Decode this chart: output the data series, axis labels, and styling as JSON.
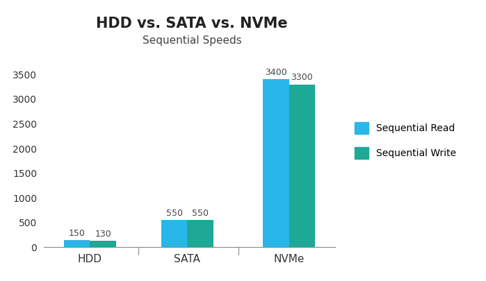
{
  "title": "HDD vs. SATA vs. NVMe",
  "subtitle": "Sequential Speeds",
  "categories": [
    "HDD",
    "SATA",
    "NVMe"
  ],
  "read_values": [
    150,
    550,
    3400
  ],
  "write_values": [
    130,
    550,
    3300
  ],
  "read_color": "#29B6E8",
  "write_color": "#1EA896",
  "ylim": [
    0,
    3700
  ],
  "yticks": [
    0,
    500,
    1000,
    1500,
    2000,
    2500,
    3000,
    3500
  ],
  "legend_labels": [
    "Sequential Read",
    "Sequential Write"
  ],
  "bar_width": 0.28,
  "title_fontsize": 15,
  "subtitle_fontsize": 11,
  "label_fontsize": 9,
  "tick_fontsize": 10,
  "legend_fontsize": 10,
  "background_color": "#ffffff",
  "x_positions": [
    0.0,
    1.05,
    2.15
  ]
}
